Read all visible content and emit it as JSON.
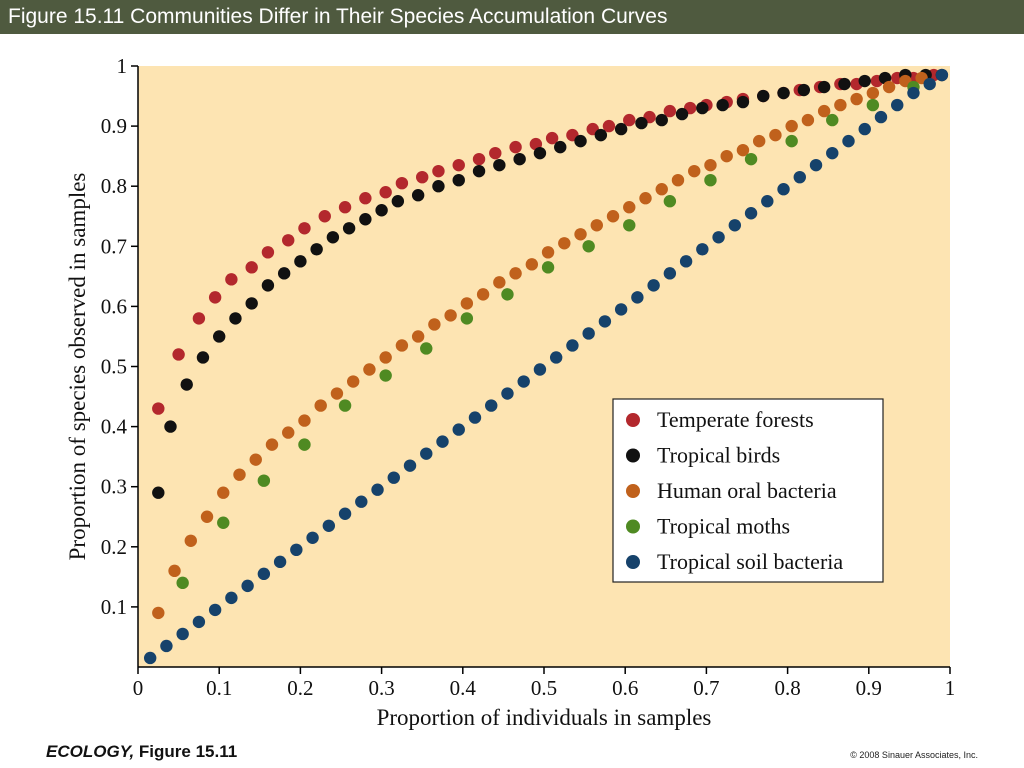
{
  "header": {
    "title": "Figure 15.11  Communities Differ in Their Species Accumulation Curves"
  },
  "footer": {
    "book": "ECOLOGY,",
    "figure": " Figure 15.11",
    "copyright": "© 2008 Sinauer Associates, Inc."
  },
  "colors": {
    "header_bg": "#4f5a3f",
    "plot_bg": "#fde4b2"
  },
  "chart_data": {
    "type": "scatter",
    "xlabel": "Proportion of individuals in samples",
    "ylabel": "Proportion of species observed in samples",
    "xlim": [
      0,
      1
    ],
    "ylim": [
      0,
      1
    ],
    "xticks": [
      "0",
      "0.1",
      "0.2",
      "0.3",
      "0.4",
      "0.5",
      "0.6",
      "0.7",
      "0.8",
      "0.9",
      "1"
    ],
    "yticks": [
      "0.1",
      "0.2",
      "0.3",
      "0.4",
      "0.5",
      "0.6",
      "0.7",
      "0.8",
      "0.9",
      "1"
    ],
    "grid": false,
    "legend_position": "lower-right",
    "series": [
      {
        "name": "Temperate forests",
        "color": "#b3282d",
        "x": [
          0.025,
          0.05,
          0.075,
          0.095,
          0.115,
          0.14,
          0.16,
          0.185,
          0.205,
          0.23,
          0.255,
          0.28,
          0.305,
          0.325,
          0.35,
          0.37,
          0.395,
          0.42,
          0.44,
          0.465,
          0.49,
          0.51,
          0.535,
          0.56,
          0.58,
          0.605,
          0.63,
          0.655,
          0.68,
          0.7,
          0.725,
          0.745,
          0.77,
          0.795,
          0.815,
          0.84,
          0.865,
          0.885,
          0.91,
          0.935,
          0.955,
          0.98
        ],
        "y": [
          0.43,
          0.52,
          0.58,
          0.615,
          0.645,
          0.665,
          0.69,
          0.71,
          0.73,
          0.75,
          0.765,
          0.78,
          0.79,
          0.805,
          0.815,
          0.825,
          0.835,
          0.845,
          0.855,
          0.865,
          0.87,
          0.88,
          0.885,
          0.895,
          0.9,
          0.91,
          0.915,
          0.925,
          0.93,
          0.935,
          0.94,
          0.945,
          0.95,
          0.955,
          0.96,
          0.965,
          0.97,
          0.97,
          0.975,
          0.98,
          0.98,
          0.985
        ]
      },
      {
        "name": "Tropical birds",
        "color": "#111111",
        "x": [
          0.025,
          0.04,
          0.06,
          0.08,
          0.1,
          0.12,
          0.14,
          0.16,
          0.18,
          0.2,
          0.22,
          0.24,
          0.26,
          0.28,
          0.3,
          0.32,
          0.345,
          0.37,
          0.395,
          0.42,
          0.445,
          0.47,
          0.495,
          0.52,
          0.545,
          0.57,
          0.595,
          0.62,
          0.645,
          0.67,
          0.695,
          0.72,
          0.745,
          0.77,
          0.795,
          0.82,
          0.845,
          0.87,
          0.895,
          0.92,
          0.945,
          0.97,
          0.99
        ],
        "y": [
          0.29,
          0.4,
          0.47,
          0.515,
          0.55,
          0.58,
          0.605,
          0.635,
          0.655,
          0.675,
          0.695,
          0.715,
          0.73,
          0.745,
          0.76,
          0.775,
          0.785,
          0.8,
          0.81,
          0.825,
          0.835,
          0.845,
          0.855,
          0.865,
          0.875,
          0.885,
          0.895,
          0.905,
          0.91,
          0.92,
          0.93,
          0.935,
          0.94,
          0.95,
          0.955,
          0.96,
          0.965,
          0.97,
          0.975,
          0.98,
          0.985,
          0.985,
          0.985
        ]
      },
      {
        "name": "Human oral bacteria",
        "color": "#c0611c",
        "x": [
          0.025,
          0.045,
          0.065,
          0.085,
          0.105,
          0.125,
          0.145,
          0.165,
          0.185,
          0.205,
          0.225,
          0.245,
          0.265,
          0.285,
          0.305,
          0.325,
          0.345,
          0.365,
          0.385,
          0.405,
          0.425,
          0.445,
          0.465,
          0.485,
          0.505,
          0.525,
          0.545,
          0.565,
          0.585,
          0.605,
          0.625,
          0.645,
          0.665,
          0.685,
          0.705,
          0.725,
          0.745,
          0.765,
          0.785,
          0.805,
          0.825,
          0.845,
          0.865,
          0.885,
          0.905,
          0.925,
          0.945,
          0.965
        ],
        "y": [
          0.09,
          0.16,
          0.21,
          0.25,
          0.29,
          0.32,
          0.345,
          0.37,
          0.39,
          0.41,
          0.435,
          0.455,
          0.475,
          0.495,
          0.515,
          0.535,
          0.55,
          0.57,
          0.585,
          0.605,
          0.62,
          0.64,
          0.655,
          0.67,
          0.69,
          0.705,
          0.72,
          0.735,
          0.75,
          0.765,
          0.78,
          0.795,
          0.81,
          0.825,
          0.835,
          0.85,
          0.86,
          0.875,
          0.885,
          0.9,
          0.91,
          0.925,
          0.935,
          0.945,
          0.955,
          0.965,
          0.975,
          0.98
        ]
      },
      {
        "name": "Tropical moths",
        "color": "#4f8a22",
        "x": [
          0.055,
          0.105,
          0.155,
          0.205,
          0.255,
          0.305,
          0.355,
          0.405,
          0.455,
          0.505,
          0.555,
          0.605,
          0.655,
          0.705,
          0.755,
          0.805,
          0.855,
          0.905,
          0.955
        ],
        "y": [
          0.14,
          0.24,
          0.31,
          0.37,
          0.435,
          0.485,
          0.53,
          0.58,
          0.62,
          0.665,
          0.7,
          0.735,
          0.775,
          0.81,
          0.845,
          0.875,
          0.91,
          0.935,
          0.965
        ]
      },
      {
        "name": "Tropical soil bacteria",
        "color": "#16426b",
        "x": [
          0.015,
          0.035,
          0.055,
          0.075,
          0.095,
          0.115,
          0.135,
          0.155,
          0.175,
          0.195,
          0.215,
          0.235,
          0.255,
          0.275,
          0.295,
          0.315,
          0.335,
          0.355,
          0.375,
          0.395,
          0.415,
          0.435,
          0.455,
          0.475,
          0.495,
          0.515,
          0.535,
          0.555,
          0.575,
          0.595,
          0.615,
          0.635,
          0.655,
          0.675,
          0.695,
          0.715,
          0.735,
          0.755,
          0.775,
          0.795,
          0.815,
          0.835,
          0.855,
          0.875,
          0.895,
          0.915,
          0.935,
          0.955,
          0.975,
          0.99
        ],
        "y": [
          0.015,
          0.035,
          0.055,
          0.075,
          0.095,
          0.115,
          0.135,
          0.155,
          0.175,
          0.195,
          0.215,
          0.235,
          0.255,
          0.275,
          0.295,
          0.315,
          0.335,
          0.355,
          0.375,
          0.395,
          0.415,
          0.435,
          0.455,
          0.475,
          0.495,
          0.515,
          0.535,
          0.555,
          0.575,
          0.595,
          0.615,
          0.635,
          0.655,
          0.675,
          0.695,
          0.715,
          0.735,
          0.755,
          0.775,
          0.795,
          0.815,
          0.835,
          0.855,
          0.875,
          0.895,
          0.915,
          0.935,
          0.955,
          0.97,
          0.985
        ]
      }
    ]
  }
}
